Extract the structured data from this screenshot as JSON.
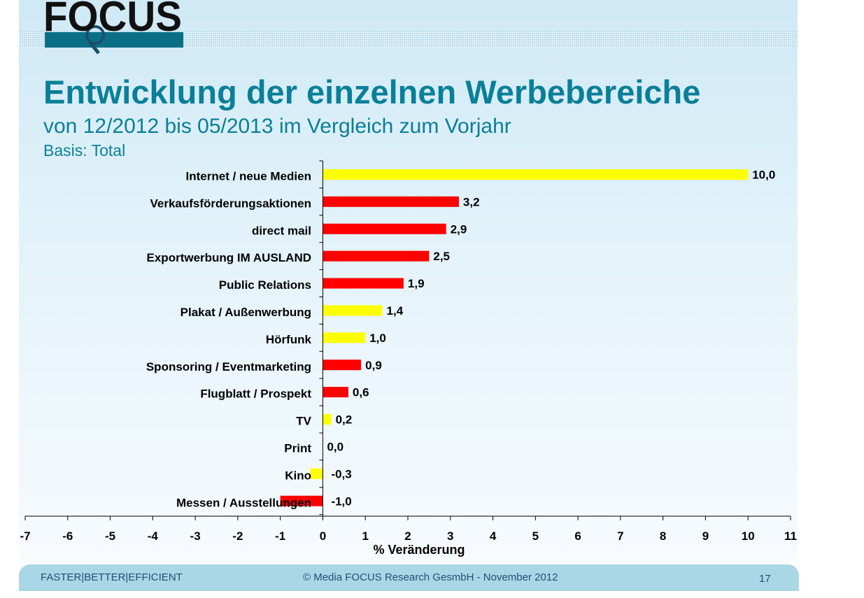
{
  "header": {
    "logo_text": "FOCUS",
    "title": "Entwicklung der einzelnen Werbebereiche",
    "subtitle": "von 12/2012 bis 05/2013 im Vergleich zum Vorjahr",
    "basis": "Basis: Total"
  },
  "colors": {
    "title": "#0a7f98",
    "bar_red": "#ff0000",
    "bar_yellow": "#ffff00",
    "footer_bg": "#a9d7e5"
  },
  "chart_data": {
    "type": "bar",
    "orientation": "horizontal",
    "categories": [
      "Internet / neue Medien",
      "Verkaufsförderungsaktionen",
      "direct mail",
      "Exportwerbung IM AUSLAND",
      "Public Relations",
      "Plakat / Außenwerbung",
      "Hörfunk",
      "Sponsoring / Eventmarketing",
      "Flugblatt / Prospekt",
      "TV",
      "Print",
      "Kino",
      "Messen / Ausstellungen"
    ],
    "values": [
      10.0,
      3.2,
      2.9,
      2.5,
      1.9,
      1.4,
      1.0,
      0.9,
      0.6,
      0.2,
      0.0,
      -0.3,
      -1.0
    ],
    "value_labels": [
      "10,0",
      "3,2",
      "2,9",
      "2,5",
      "1,9",
      "1,4",
      "1,0",
      "0,9",
      "0,6",
      "0,2",
      "0,0",
      "-0,3",
      "-1,0"
    ],
    "bar_colors": [
      "yellow",
      "red",
      "red",
      "red",
      "red",
      "yellow",
      "yellow",
      "red",
      "red",
      "yellow",
      "yellow",
      "yellow",
      "red"
    ],
    "xlabel": "% Veränderung",
    "xlim": [
      -7,
      11
    ],
    "xticks": [
      -7,
      -6,
      -5,
      -4,
      -3,
      -2,
      -1,
      0,
      1,
      2,
      3,
      4,
      5,
      6,
      7,
      8,
      9,
      10,
      11
    ],
    "legend": "none",
    "grid": false
  },
  "footer": {
    "left": "FASTER|BETTER|EFFICIENT",
    "center": "© Media FOCUS Research GesmbH - November 2012",
    "page": "17"
  }
}
